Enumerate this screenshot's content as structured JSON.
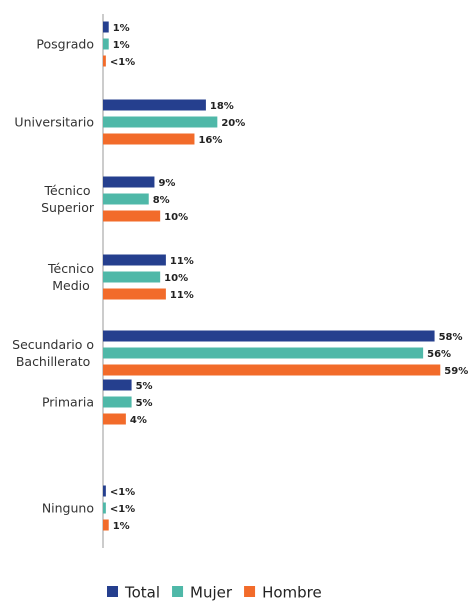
{
  "chart_data": {
    "type": "hbar",
    "categories": [
      "Posgrado",
      "Universitario",
      "Técnico\nSuperior",
      "Técnico\nMedio",
      "Secundario o\nBachillerato",
      "Primaria",
      "Ninguno"
    ],
    "series": [
      {
        "name": "Total",
        "color": "#253f8e",
        "values": [
          1,
          18,
          9,
          11,
          58,
          5,
          0.5
        ],
        "value_labels": [
          "1%",
          "18%",
          "9%",
          "11%",
          "58%",
          "5%",
          "<1%"
        ]
      },
      {
        "name": "Mujer",
        "color": "#4fb8a8",
        "values": [
          1,
          20,
          8,
          10,
          56,
          5,
          0.5
        ],
        "value_labels": [
          "1%",
          "20%",
          "8%",
          "10%",
          "56%",
          "5%",
          "<1%"
        ]
      },
      {
        "name": "Hombre",
        "color": "#f26b2a",
        "values": [
          0.5,
          16,
          10,
          11,
          59,
          4,
          1
        ],
        "value_labels": [
          "<1%",
          "16%",
          "10%",
          "11%",
          "59%",
          "4%",
          "1%"
        ]
      }
    ],
    "xlim": [
      0,
      60
    ],
    "legend": "bottom"
  }
}
